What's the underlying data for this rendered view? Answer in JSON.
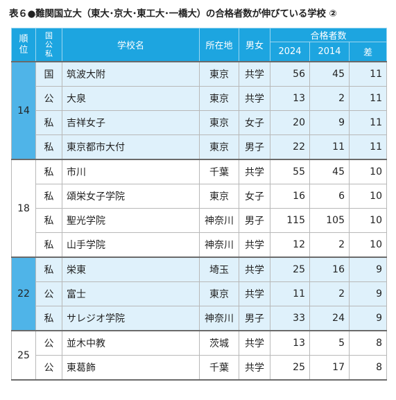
{
  "title": "表６●難関国立大（東大･京大･東工大･一橋大）の合格者数が伸びている学校 ②",
  "headers": {
    "rank": "順位",
    "type": "国公私",
    "school": "学校名",
    "location": "所在地",
    "gender": "男女",
    "count_group": "合格者数",
    "year_a": "2024",
    "year_b": "2014",
    "diff": "差"
  },
  "groups": [
    {
      "rank": "14",
      "rows": [
        {
          "type": "国",
          "school": "筑波大附",
          "location": "東京",
          "gender": "共学",
          "a": "56",
          "b": "45",
          "diff": "11"
        },
        {
          "type": "公",
          "school": "大泉",
          "location": "東京",
          "gender": "共学",
          "a": "13",
          "b": "2",
          "diff": "11"
        },
        {
          "type": "私",
          "school": "吉祥女子",
          "location": "東京",
          "gender": "女子",
          "a": "20",
          "b": "9",
          "diff": "11"
        },
        {
          "type": "私",
          "school": "東京都市大付",
          "location": "東京",
          "gender": "男子",
          "a": "22",
          "b": "11",
          "diff": "11"
        }
      ]
    },
    {
      "rank": "18",
      "rows": [
        {
          "type": "私",
          "school": "市川",
          "location": "千葉",
          "gender": "共学",
          "a": "55",
          "b": "45",
          "diff": "10"
        },
        {
          "type": "私",
          "school": "頌栄女子学院",
          "location": "東京",
          "gender": "女子",
          "a": "16",
          "b": "6",
          "diff": "10"
        },
        {
          "type": "私",
          "school": "聖光学院",
          "location": "神奈川",
          "gender": "男子",
          "a": "115",
          "b": "105",
          "diff": "10"
        },
        {
          "type": "私",
          "school": "山手学院",
          "location": "神奈川",
          "gender": "共学",
          "a": "12",
          "b": "2",
          "diff": "10"
        }
      ]
    },
    {
      "rank": "22",
      "rows": [
        {
          "type": "私",
          "school": "栄東",
          "location": "埼玉",
          "gender": "共学",
          "a": "25",
          "b": "16",
          "diff": "9"
        },
        {
          "type": "公",
          "school": "富士",
          "location": "東京",
          "gender": "共学",
          "a": "11",
          "b": "2",
          "diff": "9"
        },
        {
          "type": "私",
          "school": "サレジオ学院",
          "location": "神奈川",
          "gender": "男子",
          "a": "33",
          "b": "24",
          "diff": "9"
        }
      ]
    },
    {
      "rank": "25",
      "rows": [
        {
          "type": "公",
          "school": "並木中教",
          "location": "茨城",
          "gender": "共学",
          "a": "13",
          "b": "5",
          "diff": "8"
        },
        {
          "type": "公",
          "school": "東葛飾",
          "location": "千葉",
          "gender": "共学",
          "a": "25",
          "b": "17",
          "diff": "8"
        }
      ]
    }
  ]
}
